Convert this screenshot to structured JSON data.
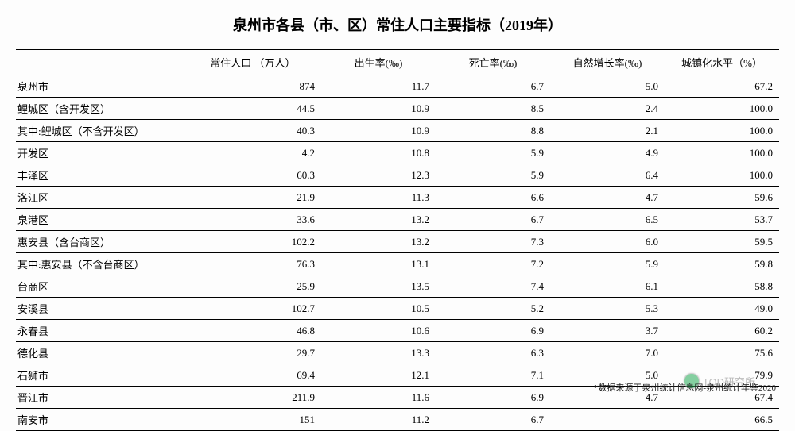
{
  "title": "泉州市各县（市、区）常住人口主要指标（2019年）",
  "columns": [
    "",
    "常住人口 （万人）",
    "出生率(‰)",
    "死亡率(‰)",
    "自然增长率(‰)",
    "城镇化水平（%）"
  ],
  "rows": [
    [
      "泉州市",
      "874",
      "11.7",
      "6.7",
      "5.0",
      "67.2"
    ],
    [
      "鲤城区（含开发区）",
      "44.5",
      "10.9",
      "8.5",
      "2.4",
      "100.0"
    ],
    [
      "其中:鲤城区（不含开发区）",
      "40.3",
      "10.9",
      "8.8",
      "2.1",
      "100.0"
    ],
    [
      "开发区",
      "4.2",
      "10.8",
      "5.9",
      "4.9",
      "100.0"
    ],
    [
      "丰泽区",
      "60.3",
      "12.3",
      "5.9",
      "6.4",
      "100.0"
    ],
    [
      "洛江区",
      "21.9",
      "11.3",
      "6.6",
      "4.7",
      "59.6"
    ],
    [
      "泉港区",
      "33.6",
      "13.2",
      "6.7",
      "6.5",
      "53.7"
    ],
    [
      "惠安县（含台商区）",
      "102.2",
      "13.2",
      "7.3",
      "6.0",
      "59.5"
    ],
    [
      "其中:惠安县（不含台商区）",
      "76.3",
      "13.1",
      "7.2",
      "5.9",
      "59.8"
    ],
    [
      "台商区",
      "25.9",
      "13.5",
      "7.4",
      "6.1",
      "58.8"
    ],
    [
      "安溪县",
      "102.7",
      "10.5",
      "5.2",
      "5.3",
      "49.0"
    ],
    [
      "永春县",
      "46.8",
      "10.6",
      "6.9",
      "3.7",
      "60.2"
    ],
    [
      "德化县",
      "29.7",
      "13.3",
      "6.3",
      "7.0",
      "75.6"
    ],
    [
      "石狮市",
      "69.4",
      "12.1",
      "7.1",
      "5.0",
      "79.9"
    ],
    [
      "晋江市",
      "211.9",
      "11.6",
      "6.9",
      "4.7",
      "67.4"
    ],
    [
      "南安市",
      "151",
      "11.2",
      "6.7",
      "",
      "66.5"
    ]
  ],
  "footer_note": "*数据来源于泉州统计信息网-泉州统计年鉴2020",
  "watermark": "TOD研究所",
  "col_widths": [
    "22%",
    "18%",
    "15%",
    "15%",
    "15%",
    "15%"
  ]
}
